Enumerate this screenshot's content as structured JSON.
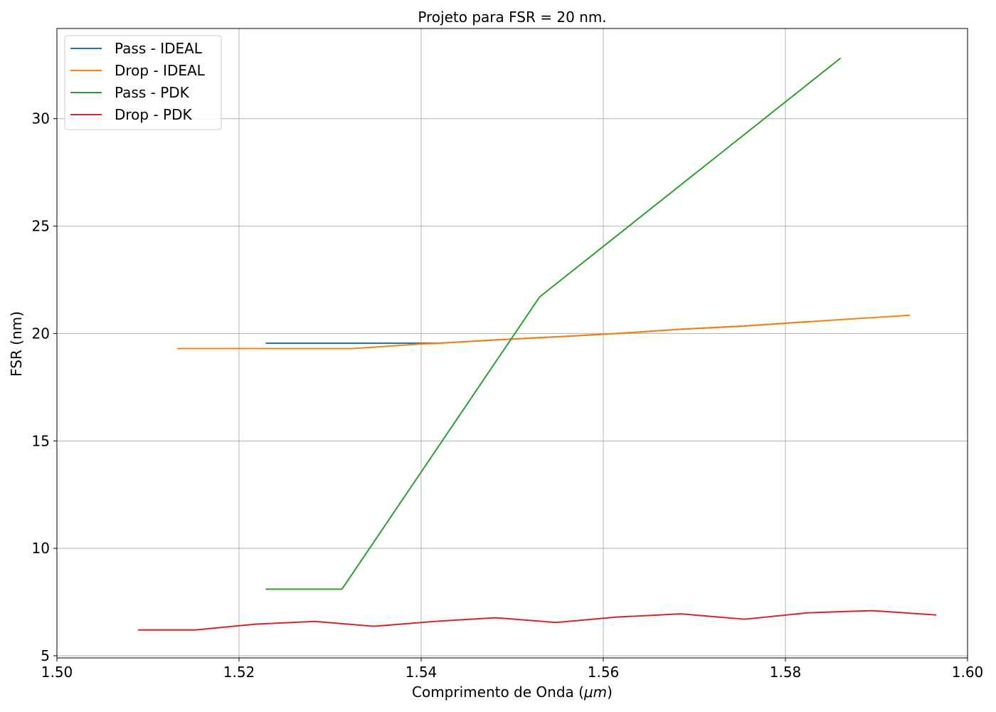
{
  "chart_data": {
    "type": "line",
    "title": "Projeto para FSR = 20 nm.",
    "xlabel_prefix": "Comprimento de Onda (",
    "xlabel_unit": "μm",
    "xlabel_suffix": ")",
    "ylabel": "FSR (nm)",
    "xlim": [
      1.5,
      1.6
    ],
    "ylim": [
      4.9,
      34.2
    ],
    "xticks": [
      1.5,
      1.52,
      1.54,
      1.56,
      1.58,
      1.6
    ],
    "xtick_labels": [
      "1.50",
      "1.52",
      "1.54",
      "1.56",
      "1.58",
      "1.60"
    ],
    "yticks": [
      5,
      10,
      15,
      20,
      25,
      30
    ],
    "ytick_labels": [
      "5",
      "10",
      "15",
      "20",
      "25",
      "30"
    ],
    "grid": true,
    "legend_position": "top-left",
    "series": [
      {
        "name": "Pass - IDEAL",
        "color": "#1f77b4",
        "x": [
          1.523,
          1.531,
          1.5395,
          1.542,
          1.548,
          1.555,
          1.5615,
          1.5685,
          1.5755,
          1.5825
        ],
        "y": [
          19.55,
          19.55,
          19.55,
          19.55,
          19.7,
          19.85,
          20.0,
          20.2,
          20.35,
          20.55
        ]
      },
      {
        "name": "Drop - IDEAL",
        "color": "#ff7f0e",
        "x": [
          1.5133,
          1.5325,
          1.5395,
          1.542,
          1.548,
          1.555,
          1.5615,
          1.5685,
          1.5755,
          1.5825,
          1.5936
        ],
        "y": [
          19.3,
          19.3,
          19.5,
          19.55,
          19.7,
          19.85,
          20.0,
          20.2,
          20.35,
          20.55,
          20.85
        ]
      },
      {
        "name": "Pass - PDK",
        "color": "#2ca02c",
        "x": [
          1.523,
          1.5313,
          1.553,
          1.586
        ],
        "y": [
          8.1,
          8.1,
          21.7,
          32.8
        ]
      },
      {
        "name": "Drop - PDK",
        "color": "#d62728",
        "x": [
          1.509,
          1.5152,
          1.5218,
          1.5283,
          1.5348,
          1.5415,
          1.5482,
          1.5548,
          1.5615,
          1.5685,
          1.5755,
          1.5825,
          1.5895,
          1.5965
        ],
        "y": [
          6.2,
          6.2,
          6.47,
          6.6,
          6.37,
          6.6,
          6.77,
          6.55,
          6.8,
          6.95,
          6.7,
          7.0,
          7.1,
          6.9
        ]
      }
    ]
  }
}
